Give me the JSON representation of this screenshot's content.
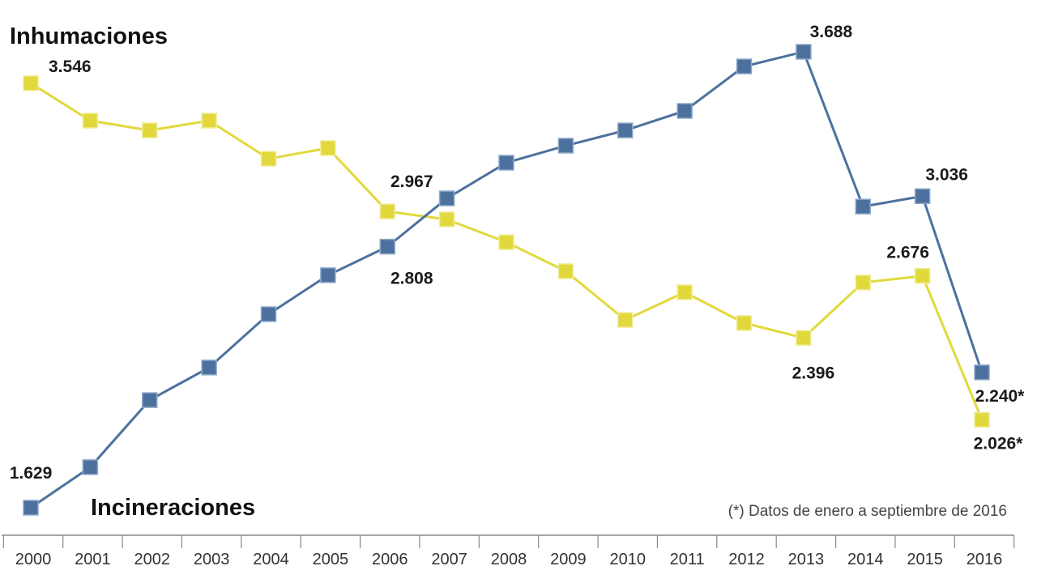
{
  "chart_data": {
    "type": "line",
    "title": "",
    "xlabel": "",
    "ylabel": "",
    "x": [
      "2000",
      "2001",
      "2002",
      "2003",
      "2004",
      "2005",
      "2006",
      "2007",
      "2008",
      "2009",
      "2010",
      "2011",
      "2012",
      "2013",
      "2014",
      "2015",
      "2016"
    ],
    "ylim": [
      1600,
      3750
    ],
    "grid": false,
    "series": [
      {
        "name": "Inhumaciones",
        "color": "#e1d93c",
        "values": [
          3546,
          3377,
          3333,
          3377,
          3205,
          3253,
          2967,
          2931,
          2828,
          2697,
          2477,
          2602,
          2463,
          2396,
          2646,
          2676,
          2026
        ]
      },
      {
        "name": "Incineraciones",
        "color": "#4c719e",
        "values": [
          1629,
          1812,
          2115,
          2262,
          2503,
          2679,
          2808,
          3026,
          3187,
          3264,
          3333,
          3421,
          3622,
          3688,
          2989,
          3036,
          2240
        ]
      }
    ],
    "data_labels": [
      {
        "series": 0,
        "index": 0,
        "text": "3.546"
      },
      {
        "series": 1,
        "index": 0,
        "text": "1.629"
      },
      {
        "series": 0,
        "index": 6,
        "text": "2.967"
      },
      {
        "series": 1,
        "index": 6,
        "text": "2.808"
      },
      {
        "series": 1,
        "index": 13,
        "text": "3.688"
      },
      {
        "series": 0,
        "index": 13,
        "text": "2.396"
      },
      {
        "series": 1,
        "index": 15,
        "text": "3.036"
      },
      {
        "series": 0,
        "index": 15,
        "text": "2.676"
      },
      {
        "series": 1,
        "index": 16,
        "text": "2.240*"
      },
      {
        "series": 0,
        "index": 16,
        "text": "2.026*"
      }
    ],
    "annotations": {
      "footnote": "(*) Datos de enero a septiembre de 2016"
    },
    "legend": "inline"
  }
}
